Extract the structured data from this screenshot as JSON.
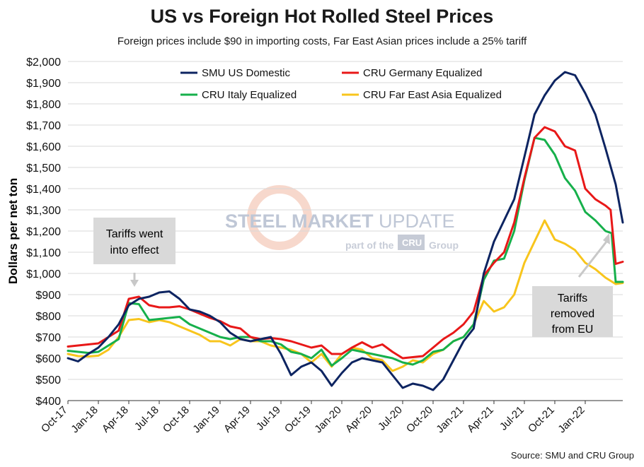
{
  "title": "US vs Foreign Hot Rolled Steel Prices",
  "subtitle": "Foreign prices include $90 in importing costs, Far East Asian prices include a 25% tariff",
  "source": "Source: SMU and CRU Group",
  "watermark": {
    "line1_bold": "STEEL MARKET",
    "line1_light": " UPDATE",
    "line2_pre": "part of the",
    "line2_badge": "CRU",
    "line2_post": "Group"
  },
  "annotations": [
    {
      "lines": [
        "Tariffs went",
        "into effect"
      ]
    },
    {
      "lines": [
        "Tariffs",
        "removed",
        "from EU"
      ]
    }
  ],
  "chart_data": {
    "type": "line",
    "title": "US vs Foreign Hot Rolled Steel Prices",
    "ylabel": "Dollars per net ton",
    "ylim": [
      400,
      2000
    ],
    "y_ticks": [
      "$400",
      "$500",
      "$600",
      "$700",
      "$800",
      "$900",
      "$1,000",
      "$1,100",
      "$1,200",
      "$1,300",
      "$1,400",
      "$1,500",
      "$1,600",
      "$1,700",
      "$1,800",
      "$1,900",
      "$2,000"
    ],
    "x_ticks": [
      "Oct-17",
      "Jan-18",
      "Apr-18",
      "Jul-18",
      "Oct-18",
      "Jan-19",
      "Apr-19",
      "Jul-19",
      "Oct-19",
      "Jan-20",
      "Apr-20",
      "Jul-20",
      "Oct-20",
      "Jan-21",
      "Apr-21",
      "Jul-21",
      "Oct-21",
      "Jan-22"
    ],
    "x_range_months": [
      0,
      54.7
    ],
    "legend_position": "top",
    "series": [
      {
        "name": "SMU US Domestic",
        "color": "#0d2461",
        "points": [
          [
            0,
            600
          ],
          [
            1,
            585
          ],
          [
            2,
            620
          ],
          [
            3,
            650
          ],
          [
            4,
            700
          ],
          [
            5,
            760
          ],
          [
            6,
            850
          ],
          [
            7,
            880
          ],
          [
            8,
            890
          ],
          [
            9,
            910
          ],
          [
            10,
            915
          ],
          [
            11,
            880
          ],
          [
            12,
            830
          ],
          [
            13,
            820
          ],
          [
            14,
            800
          ],
          [
            15,
            770
          ],
          [
            16,
            720
          ],
          [
            17,
            690
          ],
          [
            18,
            680
          ],
          [
            19,
            690
          ],
          [
            20,
            700
          ],
          [
            21,
            620
          ],
          [
            22,
            520
          ],
          [
            23,
            560
          ],
          [
            24,
            580
          ],
          [
            25,
            540
          ],
          [
            26,
            470
          ],
          [
            27,
            530
          ],
          [
            28,
            580
          ],
          [
            29,
            600
          ],
          [
            30,
            590
          ],
          [
            31,
            580
          ],
          [
            32,
            520
          ],
          [
            33,
            460
          ],
          [
            34,
            480
          ],
          [
            35,
            470
          ],
          [
            36,
            450
          ],
          [
            37,
            500
          ],
          [
            38,
            590
          ],
          [
            39,
            680
          ],
          [
            40,
            740
          ],
          [
            41,
            1000
          ],
          [
            42,
            1150
          ],
          [
            43,
            1250
          ],
          [
            44,
            1350
          ],
          [
            45,
            1550
          ],
          [
            46,
            1750
          ],
          [
            47,
            1840
          ],
          [
            48,
            1910
          ],
          [
            49,
            1950
          ],
          [
            50,
            1935
          ],
          [
            51,
            1850
          ],
          [
            52,
            1750
          ],
          [
            53,
            1590
          ],
          [
            54,
            1420
          ],
          [
            54.7,
            1240
          ]
        ]
      },
      {
        "name": "CRU Germany Equalized",
        "color": "#e81818",
        "points": [
          [
            0,
            655
          ],
          [
            1,
            660
          ],
          [
            2,
            665
          ],
          [
            3,
            670
          ],
          [
            4,
            700
          ],
          [
            5,
            730
          ],
          [
            6,
            880
          ],
          [
            7,
            890
          ],
          [
            8,
            850
          ],
          [
            9,
            840
          ],
          [
            10,
            840
          ],
          [
            11,
            845
          ],
          [
            12,
            830
          ],
          [
            13,
            810
          ],
          [
            14,
            790
          ],
          [
            15,
            775
          ],
          [
            16,
            750
          ],
          [
            17,
            740
          ],
          [
            18,
            700
          ],
          [
            19,
            690
          ],
          [
            20,
            695
          ],
          [
            21,
            690
          ],
          [
            22,
            680
          ],
          [
            23,
            665
          ],
          [
            24,
            650
          ],
          [
            25,
            660
          ],
          [
            26,
            620
          ],
          [
            27,
            620
          ],
          [
            28,
            650
          ],
          [
            29,
            675
          ],
          [
            30,
            650
          ],
          [
            31,
            665
          ],
          [
            32,
            630
          ],
          [
            33,
            600
          ],
          [
            34,
            605
          ],
          [
            35,
            610
          ],
          [
            36,
            650
          ],
          [
            37,
            690
          ],
          [
            38,
            720
          ],
          [
            39,
            760
          ],
          [
            40,
            820
          ],
          [
            41,
            990
          ],
          [
            42,
            1050
          ],
          [
            43,
            1100
          ],
          [
            44,
            1240
          ],
          [
            45,
            1450
          ],
          [
            46,
            1640
          ],
          [
            47,
            1690
          ],
          [
            48,
            1670
          ],
          [
            49,
            1600
          ],
          [
            50,
            1580
          ],
          [
            51,
            1400
          ],
          [
            52,
            1350
          ],
          [
            53,
            1320
          ],
          [
            53.5,
            1300
          ],
          [
            54,
            1045
          ],
          [
            54.7,
            1055
          ]
        ]
      },
      {
        "name": "CRU Italy Equalized",
        "color": "#16b04b",
        "points": [
          [
            0,
            635
          ],
          [
            1,
            630
          ],
          [
            2,
            625
          ],
          [
            3,
            630
          ],
          [
            4,
            660
          ],
          [
            5,
            690
          ],
          [
            6,
            860
          ],
          [
            7,
            855
          ],
          [
            8,
            780
          ],
          [
            9,
            785
          ],
          [
            10,
            790
          ],
          [
            11,
            795
          ],
          [
            12,
            760
          ],
          [
            13,
            740
          ],
          [
            14,
            720
          ],
          [
            15,
            700
          ],
          [
            16,
            690
          ],
          [
            17,
            700
          ],
          [
            18,
            700
          ],
          [
            19,
            680
          ],
          [
            20,
            680
          ],
          [
            21,
            665
          ],
          [
            22,
            630
          ],
          [
            23,
            620
          ],
          [
            24,
            600
          ],
          [
            25,
            640
          ],
          [
            26,
            565
          ],
          [
            27,
            600
          ],
          [
            28,
            640
          ],
          [
            29,
            630
          ],
          [
            30,
            620
          ],
          [
            31,
            610
          ],
          [
            32,
            600
          ],
          [
            33,
            580
          ],
          [
            34,
            570
          ],
          [
            35,
            590
          ],
          [
            36,
            630
          ],
          [
            37,
            640
          ],
          [
            38,
            680
          ],
          [
            39,
            700
          ],
          [
            40,
            760
          ],
          [
            41,
            970
          ],
          [
            42,
            1060
          ],
          [
            43,
            1070
          ],
          [
            44,
            1200
          ],
          [
            45,
            1440
          ],
          [
            46,
            1640
          ],
          [
            47,
            1630
          ],
          [
            48,
            1560
          ],
          [
            49,
            1450
          ],
          [
            50,
            1390
          ],
          [
            51,
            1290
          ],
          [
            52,
            1250
          ],
          [
            53,
            1200
          ],
          [
            53.6,
            1190
          ],
          [
            54,
            960
          ],
          [
            54.7,
            960
          ]
        ]
      },
      {
        "name": "CRU Far East Asia Equalized",
        "color": "#f8c51c",
        "points": [
          [
            0,
            620
          ],
          [
            1,
            610
          ],
          [
            2,
            608
          ],
          [
            3,
            612
          ],
          [
            4,
            640
          ],
          [
            5,
            700
          ],
          [
            6,
            780
          ],
          [
            7,
            785
          ],
          [
            8,
            770
          ],
          [
            9,
            780
          ],
          [
            10,
            770
          ],
          [
            11,
            750
          ],
          [
            12,
            730
          ],
          [
            13,
            710
          ],
          [
            14,
            680
          ],
          [
            15,
            680
          ],
          [
            16,
            660
          ],
          [
            17,
            690
          ],
          [
            18,
            680
          ],
          [
            19,
            680
          ],
          [
            20,
            660
          ],
          [
            21,
            650
          ],
          [
            22,
            640
          ],
          [
            23,
            620
          ],
          [
            24,
            580
          ],
          [
            25,
            620
          ],
          [
            26,
            560
          ],
          [
            27,
            620
          ],
          [
            28,
            650
          ],
          [
            29,
            640
          ],
          [
            30,
            600
          ],
          [
            31,
            590
          ],
          [
            32,
            540
          ],
          [
            33,
            560
          ],
          [
            34,
            590
          ],
          [
            35,
            580
          ],
          [
            36,
            620
          ],
          [
            37,
            640
          ],
          [
            38,
            680
          ],
          [
            39,
            700
          ],
          [
            40,
            760
          ],
          [
            41,
            870
          ],
          [
            42,
            820
          ],
          [
            43,
            840
          ],
          [
            44,
            900
          ],
          [
            45,
            1050
          ],
          [
            46,
            1150
          ],
          [
            47,
            1250
          ],
          [
            48,
            1160
          ],
          [
            49,
            1140
          ],
          [
            50,
            1110
          ],
          [
            51,
            1050
          ],
          [
            52,
            1020
          ],
          [
            53,
            980
          ],
          [
            54,
            950
          ],
          [
            54.7,
            955
          ]
        ]
      }
    ]
  }
}
